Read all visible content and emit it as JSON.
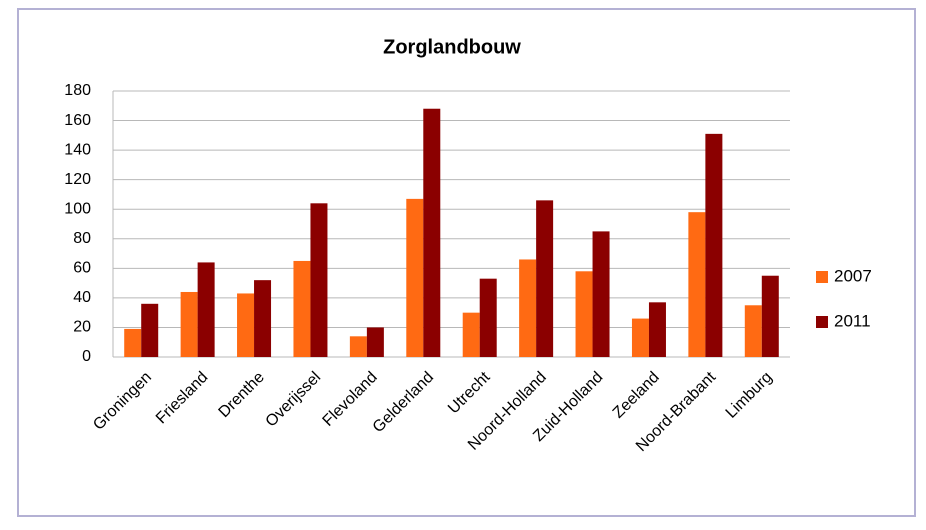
{
  "chart_data": {
    "type": "bar",
    "title": "Zorglandbouw",
    "categories": [
      "Groningen",
      "Friesland",
      "Drenthe",
      "Overijssel",
      "Flevoland",
      "Gelderland",
      "Utrecht",
      "Noord-Holland",
      "Zuid-Holland",
      "Zeeland",
      "Noord-Brabant",
      "Limburg"
    ],
    "series": [
      {
        "name": "2007",
        "color": "#ff6a13",
        "values": [
          19,
          44,
          43,
          65,
          14,
          107,
          30,
          66,
          58,
          26,
          98,
          35
        ]
      },
      {
        "name": "2011",
        "color": "#8b0000",
        "values": [
          36,
          64,
          52,
          104,
          20,
          168,
          53,
          106,
          85,
          37,
          151,
          55
        ]
      }
    ],
    "ylim": [
      0,
      180
    ],
    "yticks": [
      0,
      20,
      40,
      60,
      80,
      100,
      120,
      140,
      160,
      180
    ],
    "grid": true,
    "legend": "right"
  }
}
